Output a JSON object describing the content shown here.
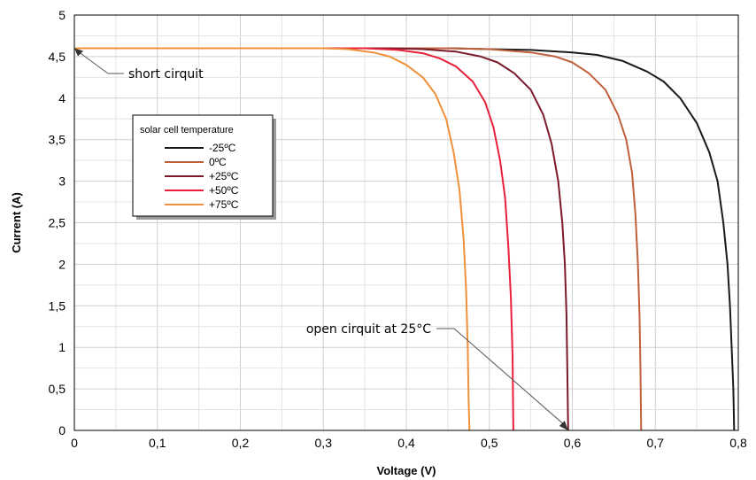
{
  "chart_data": {
    "type": "line",
    "title": "",
    "xlabel": "Voltage (V)",
    "ylabel": "Current (A)",
    "xlim": [
      0,
      0.8
    ],
    "ylim": [
      0,
      5
    ],
    "x_ticks": [
      0,
      0.1,
      0.2,
      0.3,
      0.4,
      0.5,
      0.6,
      0.7,
      0.8
    ],
    "x_tick_labels": [
      "0",
      "0,1",
      "0,2",
      "0,3",
      "0,4",
      "0,5",
      "0,6",
      "0,7",
      "0,8"
    ],
    "y_ticks": [
      0,
      0.5,
      1,
      1.5,
      2,
      2.5,
      3,
      3.5,
      4,
      4.5,
      5
    ],
    "y_tick_labels": [
      "0",
      "0,5",
      "1",
      "1,5",
      "2",
      "2,5",
      "3",
      "3,5",
      "4",
      "4,5",
      "5"
    ],
    "grid": true,
    "legend": {
      "title": "solar cell temperature",
      "position": "upper-left"
    },
    "series": [
      {
        "name": "-25ºC",
        "color": "#1a1a1a",
        "points": [
          [
            0,
            4.6
          ],
          [
            0.3,
            4.6
          ],
          [
            0.45,
            4.6
          ],
          [
            0.5,
            4.59
          ],
          [
            0.55,
            4.58
          ],
          [
            0.6,
            4.55
          ],
          [
            0.63,
            4.52
          ],
          [
            0.66,
            4.45
          ],
          [
            0.69,
            4.32
          ],
          [
            0.71,
            4.2
          ],
          [
            0.73,
            4.0
          ],
          [
            0.75,
            3.7
          ],
          [
            0.765,
            3.35
          ],
          [
            0.775,
            3.0
          ],
          [
            0.782,
            2.5
          ],
          [
            0.787,
            2.0
          ],
          [
            0.79,
            1.5
          ],
          [
            0.792,
            1.0
          ],
          [
            0.794,
            0.5
          ],
          [
            0.795,
            0
          ]
        ]
      },
      {
        "name": "0ºC",
        "color": "#c0603a",
        "points": [
          [
            0,
            4.6
          ],
          [
            0.3,
            4.6
          ],
          [
            0.45,
            4.6
          ],
          [
            0.5,
            4.59
          ],
          [
            0.55,
            4.55
          ],
          [
            0.58,
            4.5
          ],
          [
            0.6,
            4.43
          ],
          [
            0.62,
            4.3
          ],
          [
            0.64,
            4.1
          ],
          [
            0.655,
            3.8
          ],
          [
            0.665,
            3.5
          ],
          [
            0.672,
            3.1
          ],
          [
            0.676,
            2.6
          ],
          [
            0.679,
            2.0
          ],
          [
            0.681,
            1.4
          ],
          [
            0.682,
            0.8
          ],
          [
            0.683,
            0
          ]
        ]
      },
      {
        "name": "+25ºC",
        "color": "#7a1a2a",
        "points": [
          [
            0,
            4.6
          ],
          [
            0.3,
            4.6
          ],
          [
            0.38,
            4.6
          ],
          [
            0.42,
            4.59
          ],
          [
            0.46,
            4.56
          ],
          [
            0.49,
            4.5
          ],
          [
            0.51,
            4.43
          ],
          [
            0.53,
            4.3
          ],
          [
            0.55,
            4.1
          ],
          [
            0.565,
            3.8
          ],
          [
            0.575,
            3.45
          ],
          [
            0.583,
            3.0
          ],
          [
            0.588,
            2.5
          ],
          [
            0.591,
            2.0
          ],
          [
            0.593,
            1.4
          ],
          [
            0.594,
            0.7
          ],
          [
            0.595,
            0
          ]
        ]
      },
      {
        "name": "+50ºC",
        "color": "#e8203a",
        "points": [
          [
            0,
            4.6
          ],
          [
            0.3,
            4.6
          ],
          [
            0.35,
            4.6
          ],
          [
            0.39,
            4.58
          ],
          [
            0.42,
            4.54
          ],
          [
            0.44,
            4.48
          ],
          [
            0.46,
            4.38
          ],
          [
            0.48,
            4.2
          ],
          [
            0.495,
            3.95
          ],
          [
            0.505,
            3.65
          ],
          [
            0.513,
            3.25
          ],
          [
            0.519,
            2.8
          ],
          [
            0.523,
            2.2
          ],
          [
            0.526,
            1.6
          ],
          [
            0.528,
            0.9
          ],
          [
            0.529,
            0
          ]
        ]
      },
      {
        "name": "+75ºC",
        "color": "#f0903a",
        "points": [
          [
            0,
            4.6
          ],
          [
            0.3,
            4.6
          ],
          [
            0.33,
            4.59
          ],
          [
            0.36,
            4.55
          ],
          [
            0.38,
            4.5
          ],
          [
            0.4,
            4.4
          ],
          [
            0.42,
            4.25
          ],
          [
            0.435,
            4.05
          ],
          [
            0.448,
            3.75
          ],
          [
            0.457,
            3.35
          ],
          [
            0.464,
            2.9
          ],
          [
            0.469,
            2.3
          ],
          [
            0.472,
            1.7
          ],
          [
            0.474,
            1.0
          ],
          [
            0.475,
            0.4
          ],
          [
            0.476,
            0
          ]
        ]
      }
    ],
    "annotations": [
      {
        "text": "short cirquit",
        "target": [
          0,
          4.6
        ]
      },
      {
        "text": "open cirquit at 25°C",
        "target": [
          0.595,
          0
        ]
      }
    ]
  }
}
